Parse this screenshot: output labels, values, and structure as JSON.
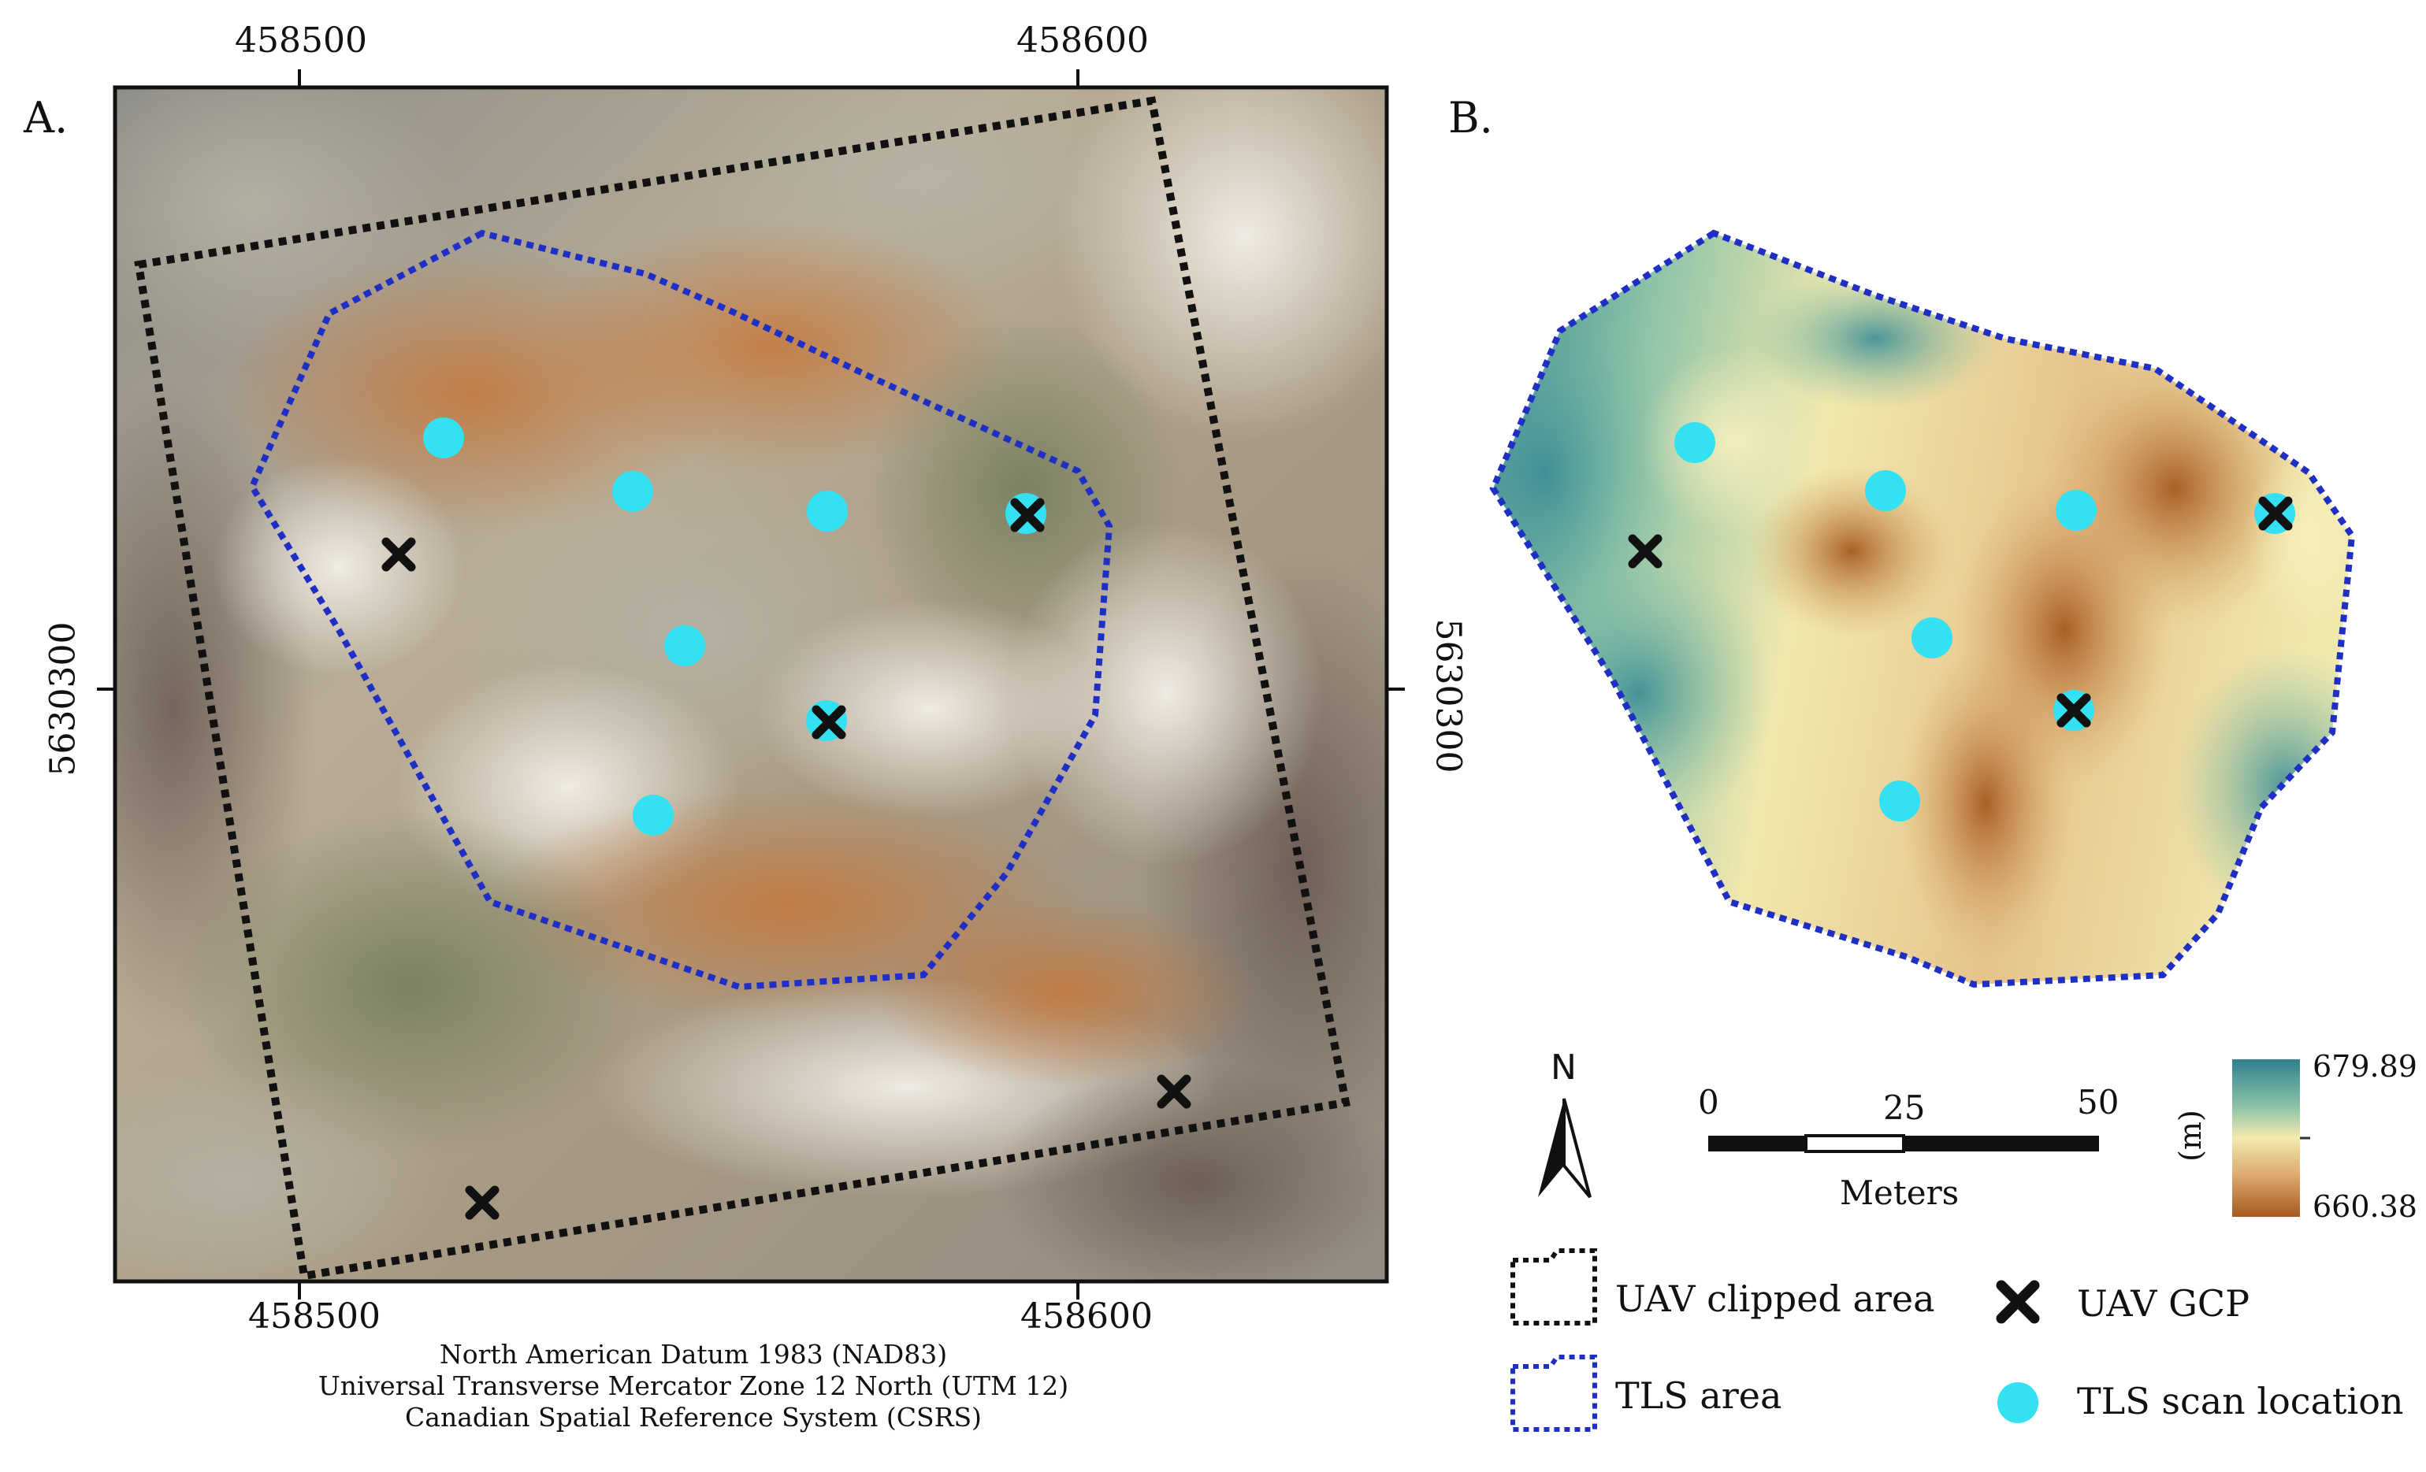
{
  "panels": {
    "a": {
      "letter": "A."
    },
    "b": {
      "letter": "B."
    }
  },
  "grid": {
    "x_labels": [
      "458500",
      "458600"
    ],
    "y_label": "5630300"
  },
  "datum_text": [
    "North American Datum 1983 (NAD83)",
    "Universal Transverse Mercator Zone 12 North (UTM 12)",
    "Canadian Spatial Reference System (CSRS)"
  ],
  "north_arrow": {
    "label": "N",
    "icon": "north-arrow-icon"
  },
  "scale_bar": {
    "ticks": [
      "0",
      "25",
      "50"
    ],
    "unit": "Meters"
  },
  "color_bar": {
    "max": "679.89",
    "min": "660.38",
    "unit": "(m)",
    "colors": [
      "#2e7f8e",
      "#8cc3a8",
      "#f3eab0",
      "#d9a66a",
      "#a75a1e"
    ]
  },
  "legend": {
    "uav_clipped_area": "UAV clipped area",
    "tls_area": "TLS area",
    "uav_gcp": "UAV GCP",
    "tls_scan_location": "TLS scan location"
  },
  "colors": {
    "tls_outline": "#1f2fc4",
    "uav_outline": "#111111",
    "scan_point": "#33e1f2",
    "gcp_marker": "#111111"
  }
}
